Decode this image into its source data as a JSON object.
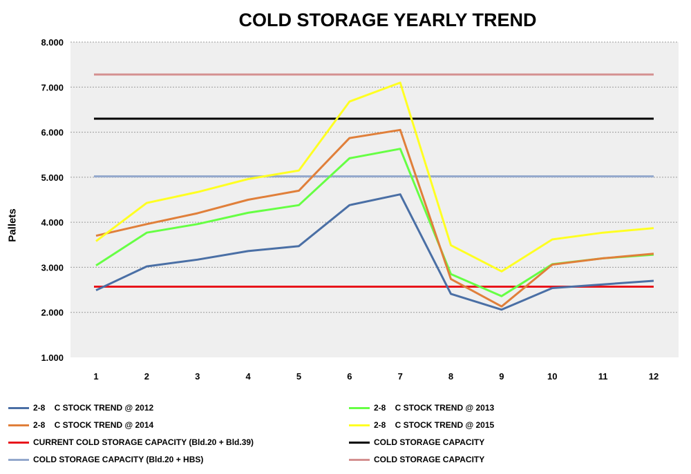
{
  "chart_data": {
    "type": "line",
    "title": "COLD STORAGE YEARLY TREND",
    "xlabel": "",
    "ylabel": "Pallets",
    "x": [
      "1",
      "2",
      "3",
      "4",
      "5",
      "6",
      "7",
      "8",
      "9",
      "10",
      "11",
      "12"
    ],
    "ylim": [
      1000,
      8000
    ],
    "yticks": [
      "1.000",
      "2.000",
      "3.000",
      "4.000",
      "5.000",
      "6.000",
      "7.000",
      "8.000"
    ],
    "grid": true,
    "legend_position": "bottom",
    "series": [
      {
        "name": "2-8    C STOCK TREND @ 2012",
        "color": "#4a6fa5",
        "values": [
          2490,
          3020,
          3170,
          3360,
          3470,
          4380,
          4620,
          2410,
          2060,
          2540,
          2620,
          2700
        ]
      },
      {
        "name": "2-8    C STOCK TREND @ 2013",
        "color": "#66ff44",
        "values": [
          3040,
          3770,
          3960,
          4210,
          4380,
          5420,
          5630,
          2850,
          2360,
          3070,
          3200,
          3280
        ]
      },
      {
        "name": "2-8    C STOCK TREND @ 2014",
        "color": "#e07f3a",
        "values": [
          3700,
          3960,
          4200,
          4500,
          4700,
          5870,
          6050,
          2740,
          2130,
          3060,
          3200,
          3300
        ]
      },
      {
        "name": "2-8    C STOCK TREND @ 2015",
        "color": "#ffff22",
        "values": [
          3580,
          4430,
          4670,
          4960,
          5150,
          6680,
          7100,
          3490,
          2910,
          3620,
          3770,
          3870
        ]
      },
      {
        "name": "CURRENT COLD STORAGE CAPACITY (Bld.20 + Bld.39)",
        "color": "#e8151b",
        "values": [
          2570,
          2570,
          2570,
          2570,
          2570,
          2570,
          2570,
          2570,
          2570,
          2570,
          2570,
          2570
        ]
      },
      {
        "name": "COLD STORAGE CAPACITY",
        "color": "#000000",
        "values": [
          6300,
          6300,
          6300,
          6300,
          6300,
          6300,
          6300,
          6300,
          6300,
          6300,
          6300,
          6300
        ]
      },
      {
        "name": "COLD STORAGE CAPACITY (Bld.20 + HBS)",
        "color": "#93a8cc",
        "values": [
          5020,
          5020,
          5020,
          5020,
          5020,
          5020,
          5020,
          5020,
          5020,
          5020,
          5020,
          5020
        ]
      },
      {
        "name": "COLD STORAGE CAPACITY",
        "color": "#d49090",
        "values": [
          7280,
          7280,
          7280,
          7280,
          7280,
          7280,
          7280,
          7280,
          7280,
          7280,
          7280,
          7280
        ]
      }
    ]
  }
}
